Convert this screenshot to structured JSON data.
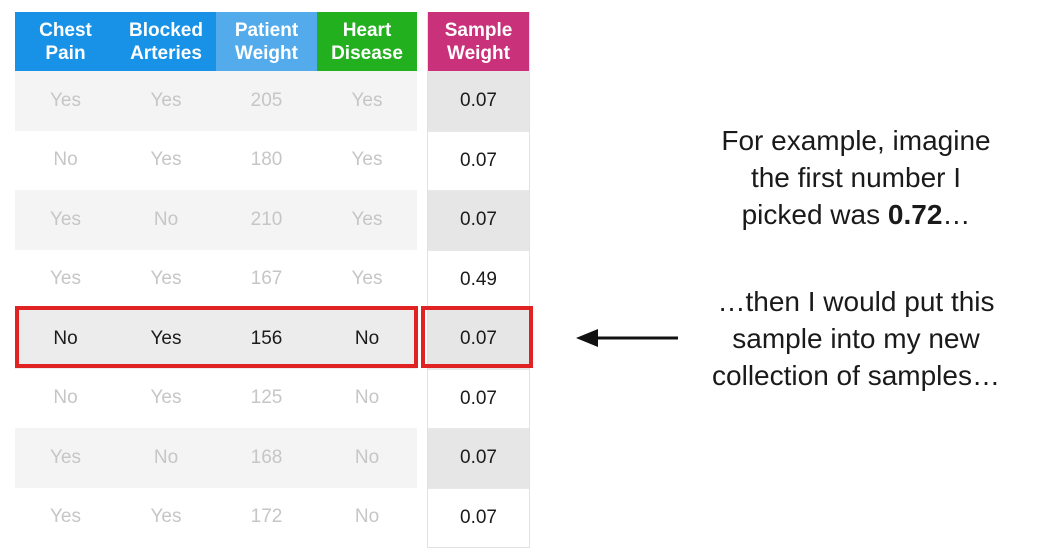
{
  "headers": [
    {
      "line1": "Chest",
      "line2": "Pain"
    },
    {
      "line1": "Blocked",
      "line2": "Arteries"
    },
    {
      "line1": "Patient",
      "line2": "Weight"
    },
    {
      "line1": "Heart",
      "line2": "Disease"
    }
  ],
  "weight_header": {
    "line1": "Sample",
    "line2": "Weight"
  },
  "rows": [
    {
      "chest_pain": "Yes",
      "blocked_arteries": "Yes",
      "patient_weight": "205",
      "heart_disease": "Yes",
      "sample_weight": "0.07"
    },
    {
      "chest_pain": "No",
      "blocked_arteries": "Yes",
      "patient_weight": "180",
      "heart_disease": "Yes",
      "sample_weight": "0.07"
    },
    {
      "chest_pain": "Yes",
      "blocked_arteries": "No",
      "patient_weight": "210",
      "heart_disease": "Yes",
      "sample_weight": "0.07"
    },
    {
      "chest_pain": "Yes",
      "blocked_arteries": "Yes",
      "patient_weight": "167",
      "heart_disease": "Yes",
      "sample_weight": "0.49"
    },
    {
      "chest_pain": "No",
      "blocked_arteries": "Yes",
      "patient_weight": "156",
      "heart_disease": "No",
      "sample_weight": "0.07"
    },
    {
      "chest_pain": "No",
      "blocked_arteries": "Yes",
      "patient_weight": "125",
      "heart_disease": "No",
      "sample_weight": "0.07"
    },
    {
      "chest_pain": "Yes",
      "blocked_arteries": "No",
      "patient_weight": "168",
      "heart_disease": "No",
      "sample_weight": "0.07"
    },
    {
      "chest_pain": "Yes",
      "blocked_arteries": "Yes",
      "patient_weight": "172",
      "heart_disease": "No",
      "sample_weight": "0.07"
    }
  ],
  "highlighted_row": 4,
  "note_top": {
    "line1": "For example, imagine",
    "line2": "the first number I",
    "line3_prefix": "picked was ",
    "line3_bold": "0.72",
    "line3_suffix": "…"
  },
  "note_bottom": {
    "line1": "…then I would put this",
    "line2": "sample into my new",
    "line3": "collection of samples…"
  },
  "colors": {
    "header_blue": "#1792e6",
    "header_blue_light": "#53abec",
    "header_green": "#22b01f",
    "header_magenta": "#c9317a",
    "highlight_red": "#e02222"
  }
}
